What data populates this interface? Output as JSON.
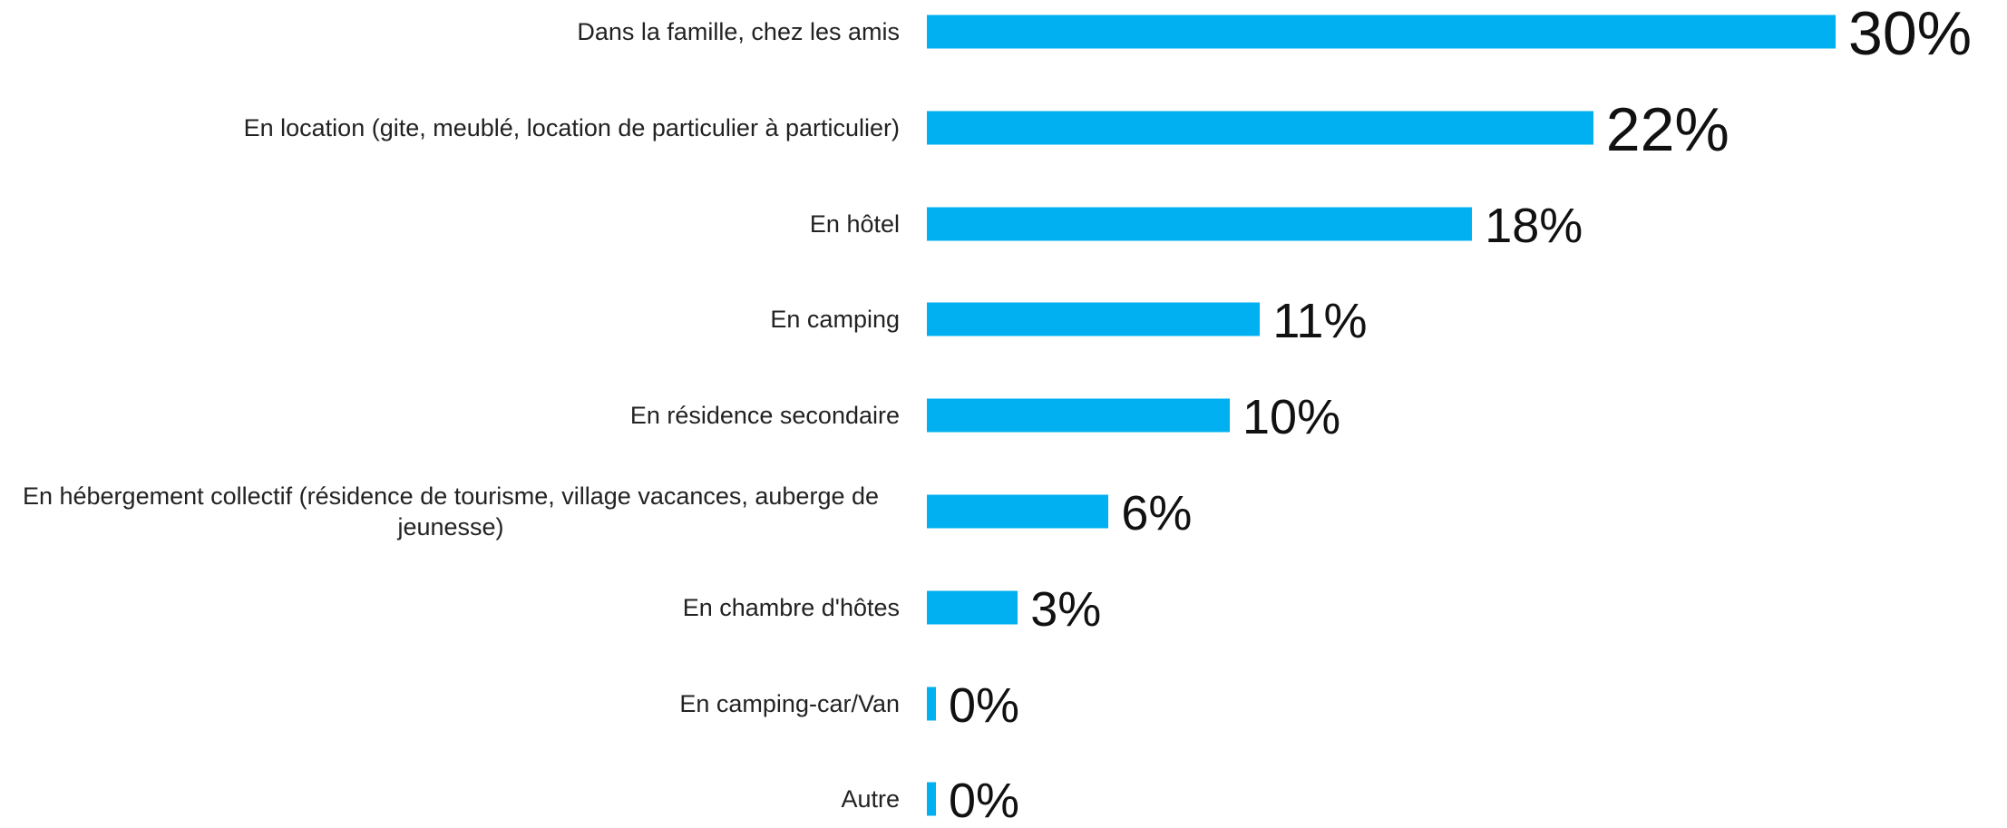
{
  "chart_data": {
    "type": "bar",
    "orientation": "horizontal",
    "categories": [
      "Dans la famille, chez les amis",
      "En location (gite, meublé, location de particulier à particulier)",
      "En hôtel",
      "En camping",
      "En résidence secondaire",
      "En hébergement collectif (résidence de tourisme, village vacances, auberge de jeunesse)",
      "En chambre d'hôtes",
      "En camping-car/Van",
      "Autre"
    ],
    "values": [
      30,
      22,
      18,
      11,
      10,
      6,
      3,
      0.3,
      0.3
    ],
    "value_labels": [
      "30%",
      "22%",
      "18%",
      "11%",
      "10%",
      "6%",
      "3%",
      "0%",
      "0%"
    ],
    "color": "#00b0f0"
  }
}
